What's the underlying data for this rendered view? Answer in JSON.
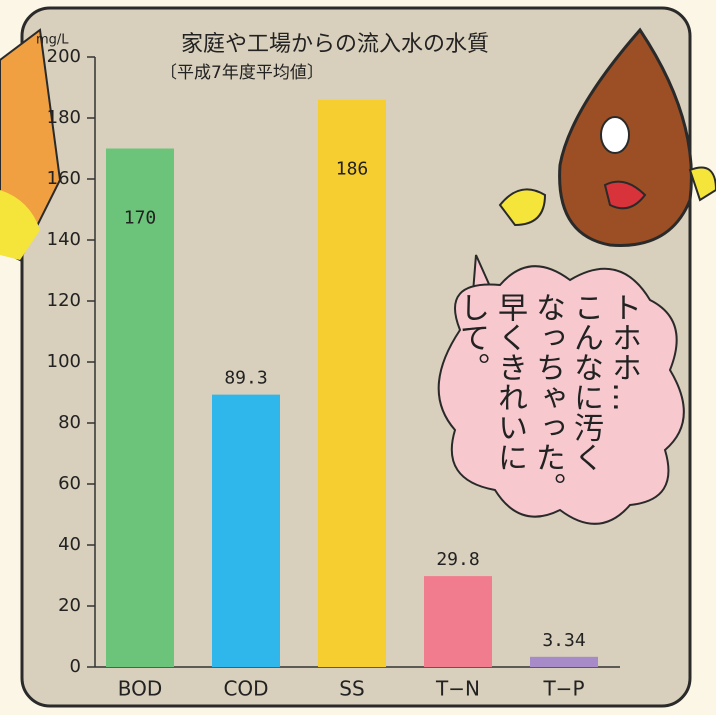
{
  "chart_data": {
    "type": "bar",
    "title": "家庭や工場からの流入水の水質",
    "subtitle": "〔平成7年度平均値〕",
    "y_unit": "mg/L",
    "categories": [
      "BOD",
      "COD",
      "SS",
      "T−N",
      "T−P"
    ],
    "values": [
      170,
      89.3,
      186,
      29.8,
      3.34
    ],
    "colors": [
      "#6cc47a",
      "#2fb6ea",
      "#f7ce2f",
      "#f07c8e",
      "#a78bc8"
    ],
    "ylim": [
      0,
      200
    ],
    "yticks": [
      0,
      20,
      40,
      60,
      80,
      100,
      120,
      140,
      160,
      180,
      200
    ],
    "annotation": [
      "トホホ…",
      "こんなに汚く",
      "なっちゃった。",
      "早くきれいに",
      "して。"
    ]
  }
}
